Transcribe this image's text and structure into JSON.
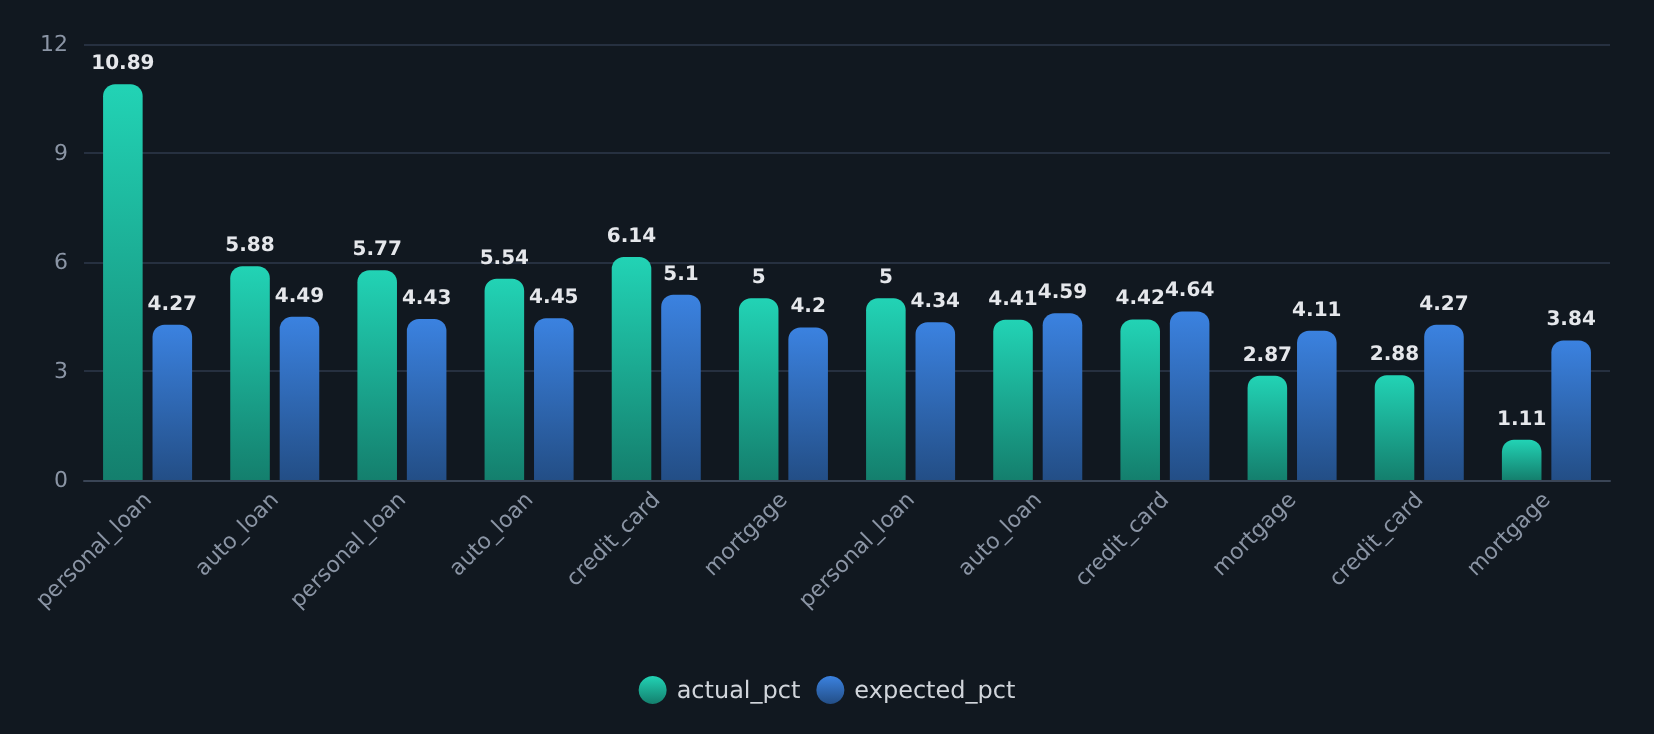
{
  "chart_data": {
    "type": "bar",
    "categories": [
      "personal_loan",
      "auto_loan",
      "personal_loan",
      "auto_loan",
      "credit_card",
      "mortgage",
      "personal_loan",
      "auto_loan",
      "credit_card",
      "mortgage",
      "credit_card",
      "mortgage"
    ],
    "series": [
      {
        "name": "actual_pct",
        "color": "#22d3b5",
        "values": [
          10.89,
          5.88,
          5.77,
          5.54,
          6.14,
          5,
          5,
          4.41,
          4.42,
          2.87,
          2.88,
          1.11
        ]
      },
      {
        "name": "expected_pct",
        "color": "#3b82e0",
        "values": [
          4.27,
          4.49,
          4.43,
          4.45,
          5.1,
          4.2,
          4.34,
          4.59,
          4.64,
          4.11,
          4.27,
          3.84
        ]
      }
    ],
    "ylim": [
      0,
      12
    ],
    "yticks": [
      0,
      3,
      6,
      9,
      12
    ],
    "grid": "y",
    "legend": "bottom",
    "data_labels": true
  }
}
